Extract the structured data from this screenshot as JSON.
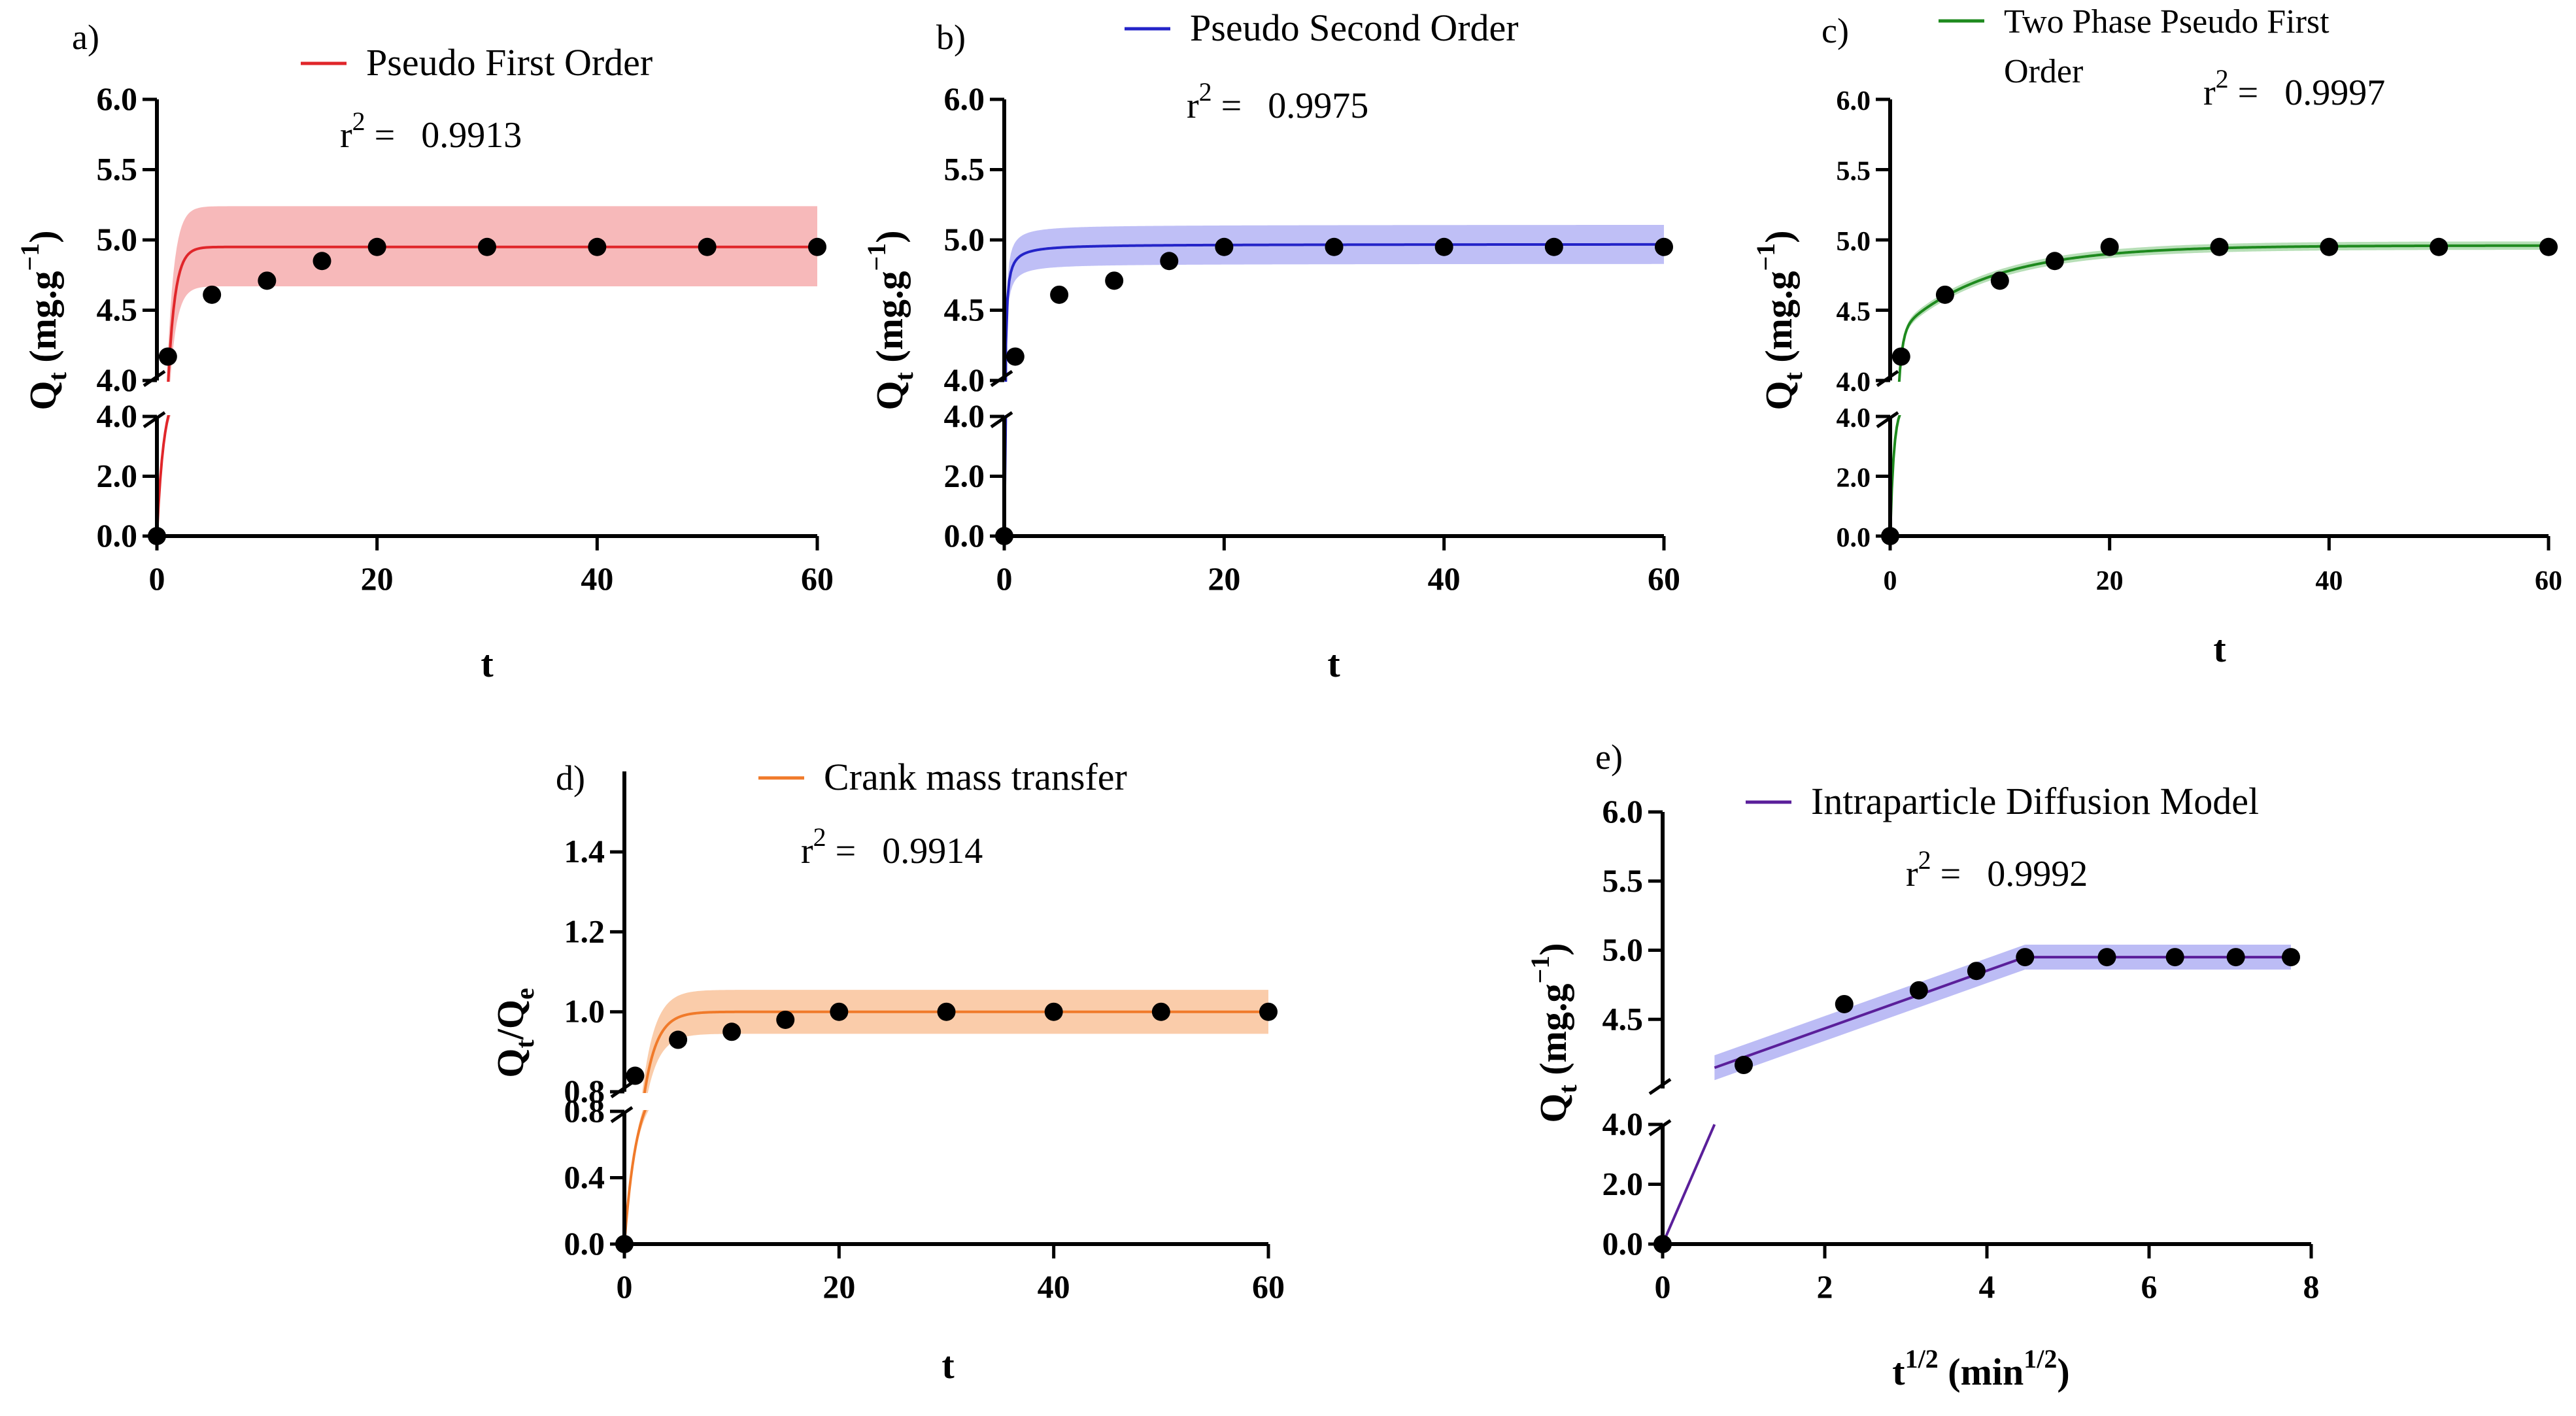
{
  "chart_data": [
    {
      "panel": "a)",
      "type": "line",
      "legend": "Pseudo First Order",
      "r2_label": "r",
      "r2_exp": "2",
      "r2_eq": " =",
      "r2_value": "0.9913",
      "color": "#e0262a",
      "band_color": "#f4a1a3",
      "xlabel": "t",
      "ylabel": "Q",
      "ylabel_sub": "t",
      "ylabel_unit": " (mg.g",
      "ylabel_exp": "−1",
      "ylabel_close": ")",
      "xlim": [
        0,
        60
      ],
      "xticks": [
        "0",
        "20",
        "40",
        "60"
      ],
      "ylim_lower": [
        0,
        4.0
      ],
      "yticks_lower": [
        "0.0",
        "2.0",
        "4.0"
      ],
      "ylim_upper": [
        4.0,
        6.0
      ],
      "yticks_upper": [
        "4.0",
        "4.5",
        "5.0",
        "5.5",
        "6.0"
      ],
      "points": {
        "x": [
          0,
          1,
          5,
          10,
          15,
          20,
          30,
          40,
          50,
          60
        ],
        "y": [
          0,
          4.17,
          4.61,
          4.71,
          4.85,
          4.95,
          4.95,
          4.95,
          4.95,
          4.95
        ]
      },
      "fit": {
        "model": "pfo",
        "qe": 4.95,
        "k": 1.6
      },
      "band": {
        "upper": 5.24,
        "lower": 4.67
      }
    },
    {
      "panel": "b)",
      "type": "line",
      "legend": "Pseudo Second Order",
      "r2_label": "r",
      "r2_exp": "2",
      "r2_eq": " =",
      "r2_value": "0.9975",
      "color": "#2424c8",
      "band_color": "#a9a9f3",
      "xlabel": "t",
      "ylabel": "Q",
      "ylabel_sub": "t",
      "ylabel_unit": " (mg.g",
      "ylabel_exp": "−1",
      "ylabel_close": ")",
      "xlim": [
        0,
        60
      ],
      "xticks": [
        "0",
        "20",
        "40",
        "60"
      ],
      "ylim_lower": [
        0,
        4.0
      ],
      "yticks_lower": [
        "0.0",
        "2.0",
        "4.0"
      ],
      "ylim_upper": [
        4.0,
        6.0
      ],
      "yticks_upper": [
        "4.0",
        "4.5",
        "5.0",
        "5.5",
        "6.0"
      ],
      "points": {
        "x": [
          0,
          1,
          5,
          10,
          15,
          20,
          30,
          40,
          50,
          60
        ],
        "y": [
          0,
          4.17,
          4.61,
          4.71,
          4.85,
          4.95,
          4.95,
          4.95,
          4.95,
          4.95
        ]
      },
      "fit": {
        "model": "pso",
        "qe": 4.97,
        "k": 8.0
      },
      "band": {
        "rel": 0.028
      }
    },
    {
      "panel": "c)",
      "type": "line",
      "legend": "Two Phase Pseudo First",
      "legend_line2": "Order",
      "r2_label": "r",
      "r2_exp": "2",
      "r2_eq": " =",
      "r2_value": "0.9997",
      "color": "#1e8a1e",
      "band_color": "#9fd49f",
      "xlabel": "t",
      "ylabel": "Q",
      "ylabel_sub": "t",
      "ylabel_unit": " (mg.g",
      "ylabel_exp": "−1",
      "ylabel_close": ")",
      "xlim": [
        0,
        60
      ],
      "xticks": [
        "0",
        "20",
        "40",
        "60"
      ],
      "ylim_lower": [
        0,
        4.0
      ],
      "yticks_lower": [
        "0.0",
        "2.0",
        "4.0"
      ],
      "ylim_upper": [
        4.0,
        6.0
      ],
      "yticks_upper": [
        "4.0",
        "4.5",
        "5.0",
        "5.5",
        "6.0"
      ],
      "points": {
        "x": [
          0,
          1,
          5,
          10,
          15,
          20,
          30,
          40,
          50,
          60
        ],
        "y": [
          0,
          4.17,
          4.61,
          4.71,
          4.85,
          4.95,
          4.95,
          4.95,
          4.95,
          4.95
        ]
      },
      "fit": {
        "model": "tppfo",
        "a1": 4.3,
        "k1": 3.0,
        "a2": 0.66,
        "k2": 0.12
      },
      "band": {
        "rel": 0.006
      }
    },
    {
      "panel": "d)",
      "type": "line",
      "legend": "Crank mass transfer",
      "r2_label": "r",
      "r2_exp": "2",
      "r2_eq": " =",
      "r2_value": "0.9914",
      "color": "#f07a2a",
      "band_color": "#f8bb8e",
      "xlabel": "t",
      "ylabel": "Q",
      "ylabel_sub": "t",
      "ylabel_unit": "/Q",
      "ylabel_sub2": "e",
      "xlim": [
        0,
        60
      ],
      "xticks": [
        "0",
        "20",
        "40",
        "60"
      ],
      "ylim_lower": [
        0,
        0.8
      ],
      "yticks_lower": [
        "0.0",
        "0.4",
        "0.8"
      ],
      "ylim_upper": [
        0.8,
        1.5
      ],
      "yticks_upper": [
        "0.8",
        "1.0",
        "1.2",
        "1.4"
      ],
      "points": {
        "x": [
          0,
          1,
          5,
          10,
          15,
          20,
          30,
          40,
          50,
          60
        ],
        "y": [
          0,
          0.84,
          0.93,
          0.95,
          0.98,
          1.0,
          1.0,
          1.0,
          1.0,
          1.0
        ]
      },
      "fit": {
        "model": "pfo",
        "qe": 1.0,
        "k": 0.85
      },
      "band": {
        "upper": 1.055,
        "lower": 0.945
      }
    },
    {
      "panel": "e)",
      "type": "line",
      "legend": "Intraparticle Diffusion Model",
      "r2_label": "r",
      "r2_exp": "2",
      "r2_eq": " =",
      "r2_value": "0.9992",
      "color": "#5a1f9a",
      "band_color": "#a6a6f2",
      "xlabel": "t",
      "xlabel_exp": "1/2",
      "xlabel_unit": " (min",
      "xlabel_unit_exp": "1/2",
      "xlabel_close": ")",
      "ylabel": "Q",
      "ylabel_sub": "t",
      "ylabel_unit": " (mg.g",
      "ylabel_exp": "−1",
      "ylabel_close": ")",
      "xlim": [
        0,
        8
      ],
      "xticks": [
        "0",
        "2",
        "4",
        "6",
        "8"
      ],
      "ylim_lower": [
        0,
        4.0
      ],
      "yticks_lower": [
        "0.0",
        "2.0",
        "4.0"
      ],
      "ylim_upper": [
        4.0,
        6.0
      ],
      "yticks_upper": [
        "4.5",
        "5.0",
        "5.5",
        "6.0"
      ],
      "points": {
        "x": [
          0,
          1.0,
          2.24,
          3.16,
          3.87,
          4.47,
          5.48,
          6.32,
          7.07,
          7.75
        ],
        "y": [
          0,
          4.17,
          4.61,
          4.71,
          4.85,
          4.95,
          4.95,
          4.95,
          4.95,
          4.95
        ]
      },
      "fit": {
        "model": "ipd",
        "segments": [
          {
            "x": [
              0,
              0.64
            ],
            "y": [
              0,
              4.0
            ]
          },
          {
            "x": [
              0.64,
              4.47
            ],
            "y": [
              4.15,
              4.95
            ]
          },
          {
            "x": [
              4.47,
              7.75
            ],
            "y": [
              4.95,
              4.95
            ]
          }
        ]
      },
      "band": {
        "half": 0.09
      }
    }
  ]
}
